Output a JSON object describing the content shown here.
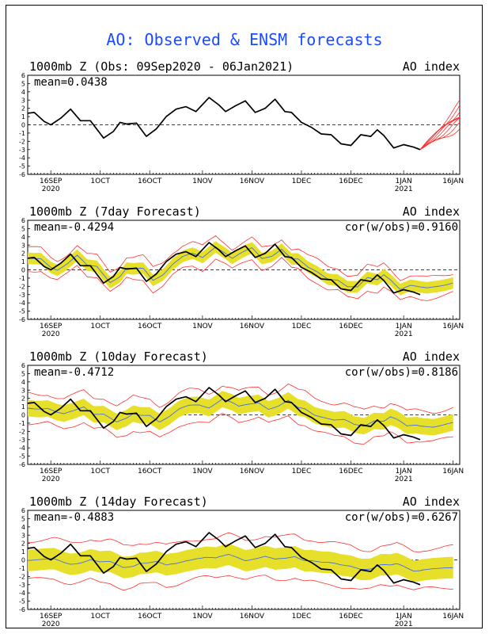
{
  "title": "AO: Observed & ENSM forecasts",
  "colors": {
    "title": "#1a4bff",
    "observed": "#000000",
    "member": "#ff3030",
    "spread": "#e6e02a",
    "mean": "#4a6fe0"
  },
  "panels": [
    {
      "title": "1000mb Z (Obs: 09Sep2020 - 06Jan2021)",
      "right": "AO index",
      "mean": "mean=0.0438",
      "cor": ""
    },
    {
      "title": "1000mb Z (7day Forecast)",
      "right": "AO index",
      "mean": "mean=-0.4294",
      "cor": "cor(w/obs)=0.9160"
    },
    {
      "title": "1000mb Z (10day Forecast)",
      "right": "AO index",
      "mean": "mean=-0.4712",
      "cor": "cor(w/obs)=0.8186"
    },
    {
      "title": "1000mb Z (14day Forecast)",
      "right": "AO index",
      "mean": "mean=-0.4883",
      "cor": "cor(w/obs)=0.6267"
    }
  ],
  "chart_data": {
    "type": "line",
    "x_range_days": [
      0,
      131
    ],
    "ylim": [
      -6,
      6
    ],
    "yticks": [
      "6",
      "5",
      "4",
      "3",
      "2",
      "1",
      "0",
      "-1",
      "-2",
      "-3",
      "-4",
      "-5",
      "-6"
    ],
    "xticks": [
      {
        "day": 7,
        "label": "16SEP",
        "sub": "2020"
      },
      {
        "day": 22,
        "label": "1OCT",
        "sub": ""
      },
      {
        "day": 37,
        "label": "16OCT",
        "sub": ""
      },
      {
        "day": 53,
        "label": "1NOV",
        "sub": ""
      },
      {
        "day": 68,
        "label": "16NOV",
        "sub": ""
      },
      {
        "day": 83,
        "label": "1DEC",
        "sub": ""
      },
      {
        "day": 98,
        "label": "16DEC",
        "sub": ""
      },
      {
        "day": 114,
        "label": "1JAN",
        "sub": "2021"
      },
      {
        "day": 129,
        "label": "16JAN",
        "sub": ""
      }
    ],
    "observed": [
      [
        0,
        1.4
      ],
      [
        2,
        1.5
      ],
      [
        5,
        0.4
      ],
      [
        7,
        0
      ],
      [
        10,
        0.8
      ],
      [
        13,
        1.9
      ],
      [
        16,
        0.5
      ],
      [
        19,
        0.5
      ],
      [
        23,
        -1.6
      ],
      [
        26,
        -0.8
      ],
      [
        28,
        0.3
      ],
      [
        30,
        0.1
      ],
      [
        33,
        0.2
      ],
      [
        36,
        -1.4
      ],
      [
        39,
        -0.5
      ],
      [
        42,
        1
      ],
      [
        45,
        1.9
      ],
      [
        48,
        2.2
      ],
      [
        51,
        1.6
      ],
      [
        55,
        3.3
      ],
      [
        58,
        2.4
      ],
      [
        60,
        1.6
      ],
      [
        63,
        2.3
      ],
      [
        66,
        2.9
      ],
      [
        69,
        1.5
      ],
      [
        72,
        2
      ],
      [
        75,
        3.1
      ],
      [
        78,
        1.6
      ],
      [
        80,
        1.5
      ],
      [
        83,
        0.3
      ],
      [
        86,
        -0.3
      ],
      [
        89,
        -1.1
      ],
      [
        92,
        -1.2
      ],
      [
        95,
        -2.3
      ],
      [
        98,
        -2.5
      ],
      [
        101,
        -1.2
      ],
      [
        104,
        -1.4
      ],
      [
        106,
        -0.6
      ],
      [
        108,
        -1.3
      ],
      [
        111,
        -2.8
      ],
      [
        114,
        -2.4
      ],
      [
        117,
        -2.7
      ],
      [
        119,
        -3
      ]
    ]
  }
}
